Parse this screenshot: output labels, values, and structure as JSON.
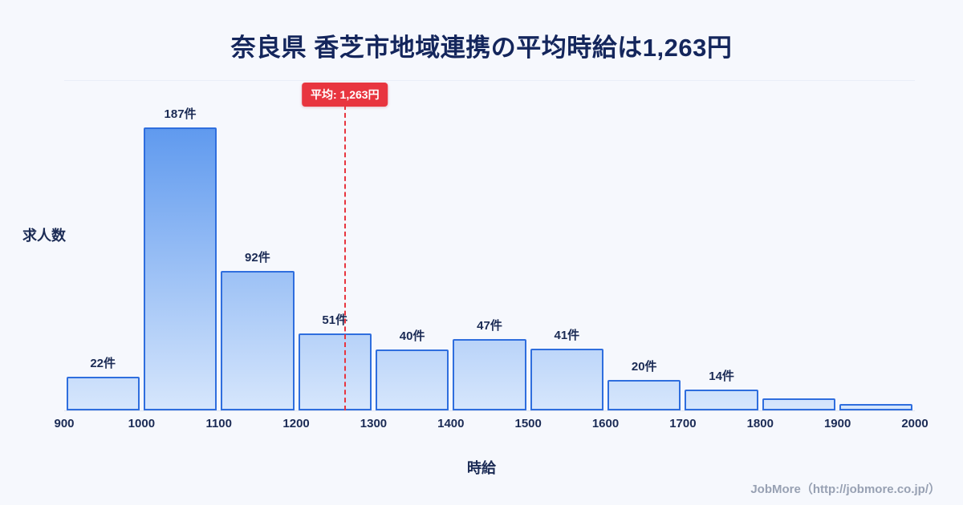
{
  "footer": "JobMore（http://jobmore.co.jp/）",
  "colors": {
    "background": "#f6f8fd",
    "title_text": "#14265c",
    "bar_fill_top": "#4a8cec",
    "bar_fill_bottom": "#d6e6fc",
    "bar_border": "#2f6ede",
    "average_line": "#e8353f",
    "badge_background": "#e8353f",
    "badge_text": "#ffffff",
    "axis_text": "#1b2b55",
    "footer_text": "#98a1b3"
  },
  "chart_data": {
    "type": "bar",
    "title": "奈良県 香芝市地域連携の平均時給は1,263円",
    "xlabel": "時給",
    "ylabel": "求人数",
    "x_range": [
      900,
      2000
    ],
    "x_ticks": [
      900,
      1000,
      1100,
      1200,
      1300,
      1400,
      1500,
      1600,
      1700,
      1800,
      1900,
      2000
    ],
    "bins": [
      {
        "range": [
          900,
          1000
        ],
        "value": 22,
        "label": "22件"
      },
      {
        "range": [
          1000,
          1100
        ],
        "value": 187,
        "label": "187件"
      },
      {
        "range": [
          1100,
          1200
        ],
        "value": 92,
        "label": "92件"
      },
      {
        "range": [
          1200,
          1300
        ],
        "value": 51,
        "label": "51件"
      },
      {
        "range": [
          1300,
          1400
        ],
        "value": 40,
        "label": "40件"
      },
      {
        "range": [
          1400,
          1500
        ],
        "value": 47,
        "label": "47件"
      },
      {
        "range": [
          1500,
          1600
        ],
        "value": 41,
        "label": "41件"
      },
      {
        "range": [
          1600,
          1700
        ],
        "value": 20,
        "label": "20件"
      },
      {
        "range": [
          1700,
          1800
        ],
        "value": 14,
        "label": "14件"
      },
      {
        "range": [
          1800,
          1900
        ],
        "value": 8,
        "label": ""
      },
      {
        "range": [
          1900,
          2000
        ],
        "value": 4,
        "label": ""
      }
    ],
    "average": {
      "value": 1263,
      "label": "平均: 1,263円"
    },
    "max_bin_value": 187,
    "y_axis_ticks": "none",
    "grid": "minimal",
    "legend": "none"
  }
}
